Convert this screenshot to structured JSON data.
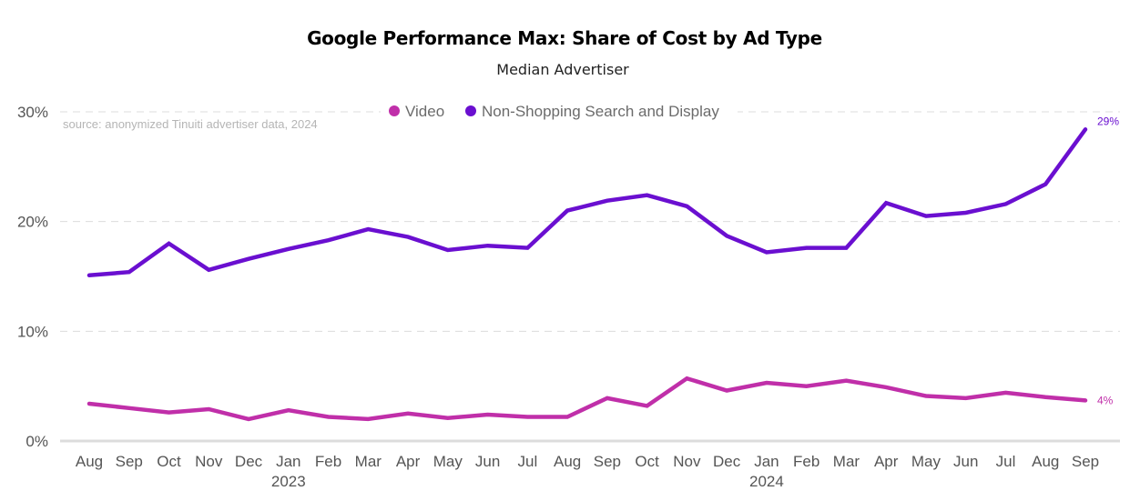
{
  "chart_data": {
    "type": "line",
    "title": "Google Performance Max: Share of Cost by Ad Type",
    "subtitle": "Median Advertiser",
    "source_note": "source: anonymized Tinuiti advertiser data, 2024",
    "xlabel": "",
    "ylabel": "",
    "ylim": [
      0,
      30
    ],
    "yticks": [
      0,
      10,
      20,
      30
    ],
    "ytick_labels": [
      "0%",
      "10%",
      "20%",
      "30%"
    ],
    "grid": true,
    "legend_position": "top-center",
    "categories": [
      "Aug",
      "Sep",
      "Oct",
      "Nov",
      "Dec",
      "Jan",
      "Feb",
      "Mar",
      "Apr",
      "May",
      "Jun",
      "Jul",
      "Aug",
      "Sep",
      "Oct",
      "Nov",
      "Dec",
      "Jan",
      "Feb",
      "Mar",
      "Apr",
      "May",
      "Jun",
      "Jul",
      "Aug",
      "Sep"
    ],
    "year_labels": [
      {
        "index": 5,
        "label": "2023"
      },
      {
        "index": 17,
        "label": "2024"
      }
    ],
    "series": [
      {
        "name": "Video",
        "color": "#c02fa9",
        "end_label": "4%",
        "values": [
          3.4,
          3.0,
          2.6,
          2.9,
          2.0,
          2.8,
          2.2,
          2.0,
          2.5,
          2.1,
          2.4,
          2.2,
          2.2,
          3.9,
          3.2,
          5.7,
          4.6,
          5.3,
          5.0,
          5.5,
          4.9,
          4.1,
          3.9,
          4.4,
          4.0,
          3.7
        ]
      },
      {
        "name": "Non-Shopping Search and Display",
        "color": "#6a0fd0",
        "end_label": "29%",
        "values": [
          15.1,
          15.4,
          18.0,
          15.6,
          16.6,
          17.5,
          18.3,
          19.3,
          18.6,
          17.4,
          17.8,
          17.6,
          21.0,
          21.9,
          22.4,
          21.4,
          18.7,
          17.2,
          17.6,
          17.6,
          21.7,
          20.5,
          20.8,
          21.6,
          23.4,
          28.4
        ]
      }
    ]
  }
}
